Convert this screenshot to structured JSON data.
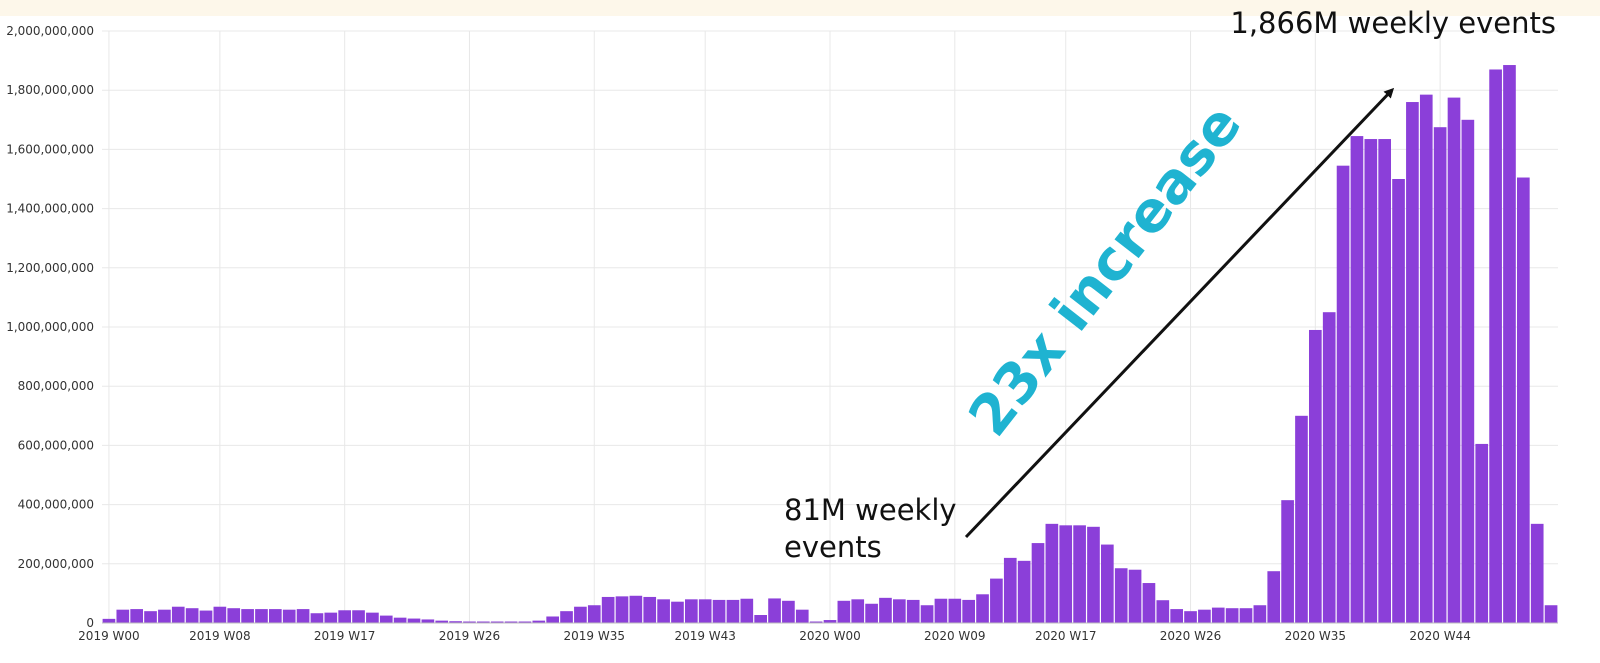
{
  "chart_data": {
    "type": "bar",
    "title": "",
    "xlabel": "",
    "ylabel": "",
    "ylim": [
      0,
      2000000000
    ],
    "grid": true,
    "y_ticks": [
      "0",
      "200,000,000",
      "400,000,000",
      "600,000,000",
      "800,000,000",
      "1,000,000,000",
      "1,200,000,000",
      "1,400,000,000",
      "1,600,000,000",
      "1,800,000,000",
      "2,000,000,000"
    ],
    "x_ticks": [
      {
        "label": "2019 W00",
        "index": 0
      },
      {
        "label": "2019 W08",
        "index": 8
      },
      {
        "label": "2019 W17",
        "index": 17
      },
      {
        "label": "2019 W26",
        "index": 26
      },
      {
        "label": "2019 W35",
        "index": 35
      },
      {
        "label": "2019 W43",
        "index": 43
      },
      {
        "label": "2020 W00",
        "index": 52
      },
      {
        "label": "2020 W09",
        "index": 61
      },
      {
        "label": "2020 W17",
        "index": 69
      },
      {
        "label": "2020 W26",
        "index": 78
      },
      {
        "label": "2020 W35",
        "index": 87
      },
      {
        "label": "2020 W44",
        "index": 96
      }
    ],
    "series": [
      {
        "color": "#8b3fd9",
        "values": [
          14000000,
          45000000,
          47000000,
          40000000,
          45000000,
          55000000,
          50000000,
          42000000,
          55000000,
          50000000,
          47000000,
          47000000,
          47000000,
          45000000,
          47000000,
          33000000,
          35000000,
          43000000,
          43000000,
          35000000,
          25000000,
          18000000,
          15000000,
          12000000,
          8000000,
          6000000,
          5000000,
          5000000,
          5000000,
          5000000,
          5000000,
          8000000,
          22000000,
          40000000,
          55000000,
          60000000,
          88000000,
          90000000,
          92000000,
          88000000,
          80000000,
          72000000,
          80000000,
          80000000,
          78000000,
          78000000,
          82000000,
          27000000,
          83000000,
          75000000,
          45000000,
          5000000,
          10000000,
          75000000,
          80000000,
          65000000,
          85000000,
          80000000,
          78000000,
          60000000,
          82000000,
          82000000,
          78000000,
          97000000,
          150000000,
          220000000,
          210000000,
          270000000,
          335000000,
          330000000,
          330000000,
          325000000,
          265000000,
          185000000,
          180000000,
          135000000,
          77000000,
          47000000,
          40000000,
          45000000,
          52000000,
          50000000,
          50000000,
          60000000,
          175000000,
          415000000,
          700000000,
          990000000,
          1050000000,
          1545000000,
          1645000000,
          1635000000,
          1635000000,
          1500000000,
          1760000000,
          1785000000,
          1675000000,
          1775000000,
          1700000000,
          605000000,
          1870000000,
          1885000000,
          1505000000,
          335000000,
          60000000
        ]
      }
    ],
    "annotations": {
      "start_label_line1": "81M weekly",
      "start_label_line2": "events",
      "end_label": "1,866M weekly events",
      "increase_label": "23x increase"
    }
  },
  "colors": {
    "bar": "#8b3fd9",
    "increase_text": "#1fb3d1",
    "arrow": "#111111",
    "grid": "#e8e8e8",
    "top_band": "#fdf7ea"
  }
}
